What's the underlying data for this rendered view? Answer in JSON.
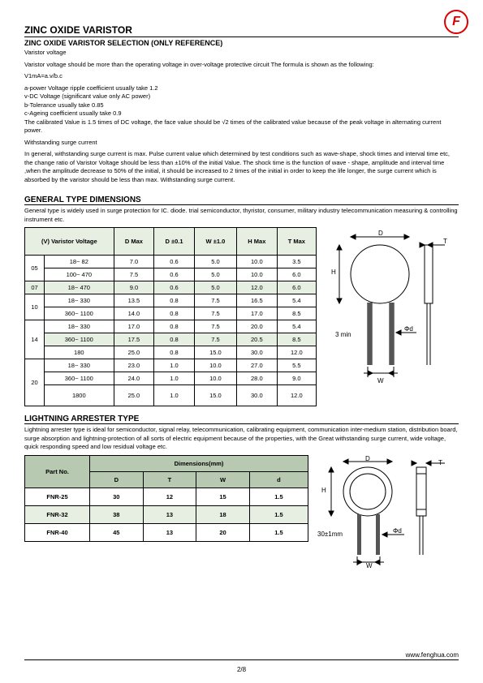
{
  "header": {
    "title": "ZINC OXIDE VARISTOR",
    "subtitle": "ZINC OXIDE VARISTOR SELECTION (ONLY REFERENCE)"
  },
  "intro": {
    "l1": "Varistor voltage",
    "l2": "Varistor voltage should be more than the operating voltage in over-voltage protective circuit The formula is shown as the following:",
    "formula": "V1mA=a.v/b.c",
    "fa": "a-power Voltage ripple coefficient usually take 1.2",
    "fb": "v-DC Voltage (significant value only AC power)",
    "fc": "b-Tolerance usually take 0.85",
    "fd": "c-Ageing coefficient usually take 0.9",
    "cal": "The calibrated Value is 1.5 times of DC voltage, the face value should be √2 times of the calibrated value because of the peak voltage in alternating current power.",
    "withstand": "Withstanding surge current",
    "withstand_body": "In general, withstanding surge current is max. Pulse current value which determined by test conditions such as wave-shape, shock times and interval time etc, the change ratio of Varistor Voltage should be less than ±10% of the initial Value. The shock time is the function of wave - shape, amplitude and interval time ,when the amplitude decrease to 50% of the initial, it should be increased to 2 times of the initial in order to keep the life longer, the surge current which is absorbed by the varistor should be less than max. Withstanding surge current."
  },
  "gen": {
    "heading": "GENERAL TYPE DIMENSIONS",
    "sub": "General type is widely used in surge protection for IC. diode. trial semiconductor, thyristor, consumer, military industry telecommunication measuring & controlling instrument etc.",
    "cols": {
      "vv": "(V) Varistor Voltage",
      "dmax": "D Max",
      "d01": "D ±0.1",
      "w10": "W ±1.0",
      "hmax": "H Max",
      "tmax": "T Max"
    },
    "rows": [
      {
        "g": "05",
        "vv": "18~ 82",
        "dmax": "7.0",
        "d01": "0.6",
        "w10": "5.0",
        "hmax": "10.0",
        "tmax": "3.5"
      },
      {
        "g": "",
        "vv": "100~ 470",
        "dmax": "7.5",
        "d01": "0.6",
        "w10": "5.0",
        "hmax": "10.0",
        "tmax": "6.0"
      },
      {
        "g": "07",
        "vv": "18~ 470",
        "dmax": "9.0",
        "d01": "0.6",
        "w10": "5.0",
        "hmax": "12.0",
        "tmax": "6.0",
        "shade": true
      },
      {
        "g": "10",
        "vv": "18~ 330",
        "dmax": "13.5",
        "d01": "0.8",
        "w10": "7.5",
        "hmax": "16.5",
        "tmax": "5.4"
      },
      {
        "g": "",
        "vv": "360~ 1100",
        "dmax": "14.0",
        "d01": "0.8",
        "w10": "7.5",
        "hmax": "17.0",
        "tmax": "8.5"
      },
      {
        "g": "14",
        "vv": "18~ 330",
        "dmax": "17.0",
        "d01": "0.8",
        "w10": "7.5",
        "hmax": "20.0",
        "tmax": "5.4"
      },
      {
        "g": "",
        "vv": "360~ 1100",
        "dmax": "17.5",
        "d01": "0.8",
        "w10": "7.5",
        "hmax": "20.5",
        "tmax": "8.5",
        "shade": true
      },
      {
        "g": "",
        "vv": "180",
        "dmax": "25.0",
        "d01": "0.8",
        "w10": "15.0",
        "hmax": "30.0",
        "tmax": "12.0"
      },
      {
        "g": "20",
        "vv": "18~ 330",
        "dmax": "23.0",
        "d01": "1.0",
        "w10": "10.0",
        "hmax": "27.0",
        "tmax": "5.5"
      },
      {
        "g": "",
        "vv": "360~ 1100",
        "dmax": "24.0",
        "d01": "1.0",
        "w10": "10.0",
        "hmax": "28.0",
        "tmax": "9.0"
      },
      {
        "g": "",
        "vv": "1800",
        "dmax": "25.0",
        "d01": "1.0",
        "w10": "15.0",
        "hmax": "30.0",
        "tmax": "12.0"
      }
    ],
    "diagram": {
      "D": "D",
      "T": "T",
      "H": "H",
      "W": "W",
      "phid": "Φd",
      "min3": "3 min"
    }
  },
  "la": {
    "heading": "LIGHTNING ARRESTER TYPE",
    "sub": "Lightning arrester type is ideal for semiconductor, signal relay, telecommunication, calibrating equipment, communication inter-medium station, distribution board, surge absorption and lightning-protection of all sorts of electric equipment because of the properties, with the Great withstanding surge current, wide voltage, quick responding speed and low residual voltage etc.",
    "cols": {
      "part": "Part No.",
      "dims": "Dimensions(mm)",
      "D": "D",
      "T": "T",
      "W": "W",
      "d": "d"
    },
    "rows": [
      {
        "part": "FNR-25",
        "D": "30",
        "T": "12",
        "W": "15",
        "d": "1.5"
      },
      {
        "part": "FNR-32",
        "D": "38",
        "T": "13",
        "W": "18",
        "d": "1.5",
        "shade": true
      },
      {
        "part": "FNR-40",
        "D": "45",
        "T": "13",
        "W": "20",
        "d": "1.5"
      }
    ],
    "diagram": {
      "D": "D",
      "T": "T",
      "H": "H",
      "W": "W",
      "phid": "Φd",
      "tol": "30±1mm"
    }
  },
  "footer": {
    "url": "www.fenghua.com",
    "page": "2/8"
  }
}
